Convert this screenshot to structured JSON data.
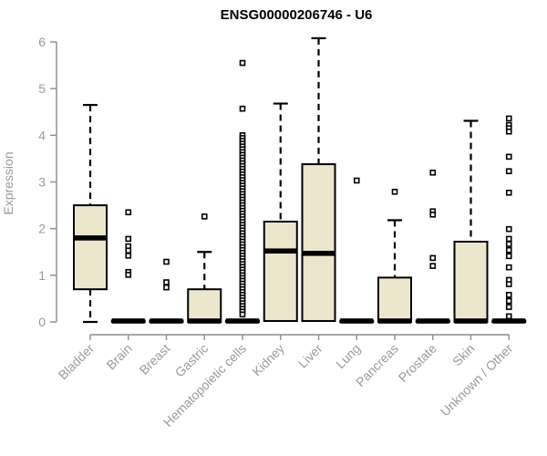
{
  "chart_data": {
    "type": "boxplot",
    "title": "ENSG00000206746 - U6",
    "ylabel": "Expression",
    "xlabel": "",
    "ylim": [
      0,
      6
    ],
    "yticks": [
      0,
      1,
      2,
      3,
      4,
      5,
      6
    ],
    "grid": false,
    "legend": false,
    "categories": [
      "Bladder",
      "Brain",
      "Breast",
      "Gastric",
      "Hematopoietic cells",
      "Kidney",
      "Liver",
      "Lung",
      "Pancreas",
      "Prostate",
      "Skin",
      "Unknown / Other"
    ],
    "series": [
      {
        "category": "Bladder",
        "min": 0,
        "q1": 0.7,
        "median": 1.8,
        "q3": 2.5,
        "max": 4.65,
        "outliers": []
      },
      {
        "category": "Brain",
        "min": 0,
        "q1": 0,
        "median": 0.02,
        "q3": 0.03,
        "max": 0.03,
        "outliers": [
          2.35,
          1.78,
          1.62,
          1.53,
          1.42,
          1.07,
          1.01
        ]
      },
      {
        "category": "Breast",
        "min": 0,
        "q1": 0,
        "median": 0.02,
        "q3": 0.03,
        "max": 0.03,
        "outliers": [
          1.29,
          0.85,
          0.74
        ]
      },
      {
        "category": "Gastric",
        "min": 0,
        "q1": 0,
        "median": 0.02,
        "q3": 0.7,
        "max": 1.5,
        "outliers": [
          2.26
        ]
      },
      {
        "category": "Hematopoietic cells",
        "min": 0,
        "q1": 0,
        "median": 0.02,
        "q3": 0.03,
        "max": 0.03,
        "outliers": [
          5.55,
          4.57,
          4.0,
          3.94,
          3.88,
          3.82,
          3.76,
          3.7,
          3.64,
          3.58,
          3.52,
          3.46,
          3.4,
          3.34,
          3.28,
          3.22,
          3.16,
          3.1,
          3.04,
          2.98,
          2.92,
          2.86,
          2.8,
          2.74,
          2.68,
          2.62,
          2.56,
          2.5,
          2.44,
          2.38,
          2.32,
          2.26,
          2.2,
          2.14,
          2.08,
          2.02,
          1.96,
          1.9,
          1.84,
          1.78,
          1.72,
          1.66,
          1.6,
          1.54,
          1.48,
          1.42,
          1.36,
          1.3,
          1.24,
          1.18,
          1.12,
          1.06,
          1.0,
          0.94,
          0.88,
          0.82,
          0.76,
          0.7,
          0.64,
          0.58,
          0.52,
          0.46,
          0.4,
          0.34,
          0.28,
          0.22,
          0.16
        ]
      },
      {
        "category": "Kidney",
        "min": 0.02,
        "q1": 0.02,
        "median": 1.52,
        "q3": 2.15,
        "max": 4.68,
        "outliers": []
      },
      {
        "category": "Liver",
        "min": 0.02,
        "q1": 0.02,
        "median": 1.47,
        "q3": 3.38,
        "max": 6.08,
        "outliers": []
      },
      {
        "category": "Lung",
        "min": 0,
        "q1": 0,
        "median": 0.02,
        "q3": 0.03,
        "max": 0.03,
        "outliers": [
          3.03
        ]
      },
      {
        "category": "Pancreas",
        "min": 0,
        "q1": 0,
        "median": 0.02,
        "q3": 0.95,
        "max": 2.18,
        "outliers": [
          2.79
        ]
      },
      {
        "category": "Prostate",
        "min": 0,
        "q1": 0,
        "median": 0.02,
        "q3": 0.03,
        "max": 0.03,
        "outliers": [
          3.2,
          2.37,
          2.3,
          1.37,
          1.2
        ]
      },
      {
        "category": "Skin",
        "min": 0,
        "q1": 0,
        "median": 0.02,
        "q3": 1.72,
        "max": 4.31,
        "outliers": []
      },
      {
        "category": "Unknown / Other",
        "min": 0,
        "q1": 0,
        "median": 0.02,
        "q3": 0.03,
        "max": 0.03,
        "outliers": [
          4.36,
          4.22,
          4.15,
          4.08,
          3.54,
          3.23,
          2.77,
          1.99,
          1.78,
          1.67,
          1.54,
          1.41,
          1.17,
          0.9,
          0.81,
          0.58,
          0.45,
          0.32,
          0.12
        ]
      }
    ],
    "colors": {
      "box_fill": "#ece6cd",
      "box_border": "#000000",
      "median": "#000000",
      "whisker": "#000000",
      "outlier_stroke": "#000000",
      "outlier_fill": "#ffffff",
      "axis_line": "#8c8c8c",
      "tick_label": "#9a9a9a",
      "title": "#000000"
    }
  }
}
